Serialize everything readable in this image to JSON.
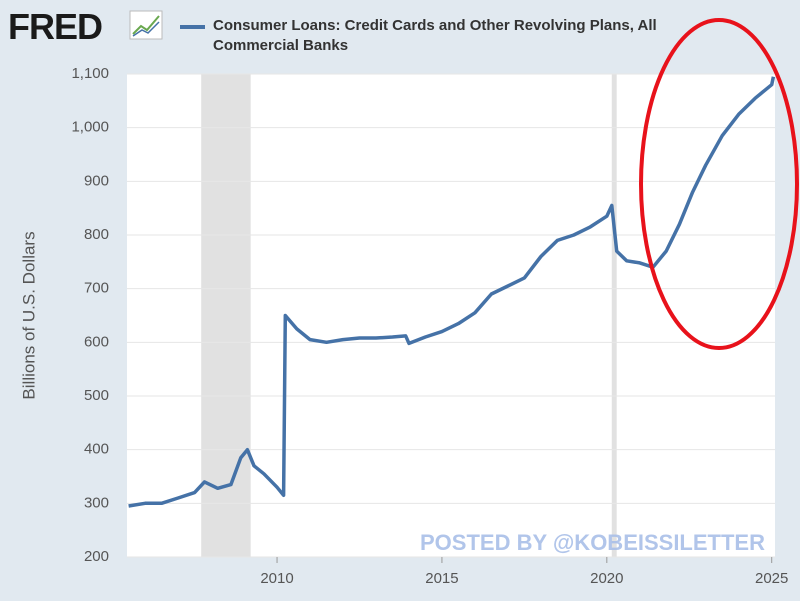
{
  "chart_data": {
    "type": "line",
    "logo": "FRED",
    "y_label": "Billions of U.S. Dollars",
    "watermark": "POSTED BY @KOBEISSILETTER",
    "x": [
      2005.5,
      2006,
      2006.5,
      2007,
      2007.5,
      2007.8,
      2008.2,
      2008.6,
      2008.9,
      2009.1,
      2009.3,
      2009.6,
      2010.0,
      2010.2,
      2010.25,
      2010.6,
      2011,
      2011.5,
      2012,
      2012.5,
      2013,
      2013.5,
      2013.9,
      2014.0,
      2014.5,
      2015,
      2015.5,
      2016,
      2016.5,
      2017,
      2017.5,
      2018,
      2018.5,
      2019,
      2019.5,
      2020,
      2020.15,
      2020.3,
      2020.6,
      2021,
      2021.4,
      2021.8,
      2022.2,
      2022.6,
      2023,
      2023.5,
      2024,
      2024.5,
      2025,
      2025.05
    ],
    "series": [
      {
        "name": "Consumer Loans: Credit Cards and Other Revolving Plans, All Commercial Banks",
        "color": "#4572a7",
        "values": [
          295,
          300,
          300,
          310,
          320,
          340,
          328,
          335,
          385,
          400,
          370,
          355,
          330,
          315,
          650,
          625,
          605,
          600,
          605,
          608,
          608,
          610,
          612,
          598,
          610,
          620,
          635,
          655,
          690,
          705,
          720,
          760,
          790,
          800,
          815,
          835,
          855,
          770,
          752,
          748,
          740,
          770,
          820,
          880,
          930,
          985,
          1025,
          1055,
          1080,
          1095
        ]
      }
    ],
    "recessions": [
      {
        "start": 2007.7,
        "end": 2009.2
      },
      {
        "start": 2020.15,
        "end": 2020.3
      }
    ],
    "recession_color": "#e1e1e1",
    "xlim": [
      2005.45,
      2025.1
    ],
    "xticks": [
      2010,
      2015,
      2020,
      2025
    ],
    "ylim": [
      200,
      1100
    ],
    "yticks": [
      200,
      300,
      400,
      500,
      600,
      700,
      800,
      900,
      {
        "value": 1000,
        "label": "1,000"
      },
      {
        "value": 1100,
        "label": "1,100"
      }
    ],
    "grid": true
  }
}
